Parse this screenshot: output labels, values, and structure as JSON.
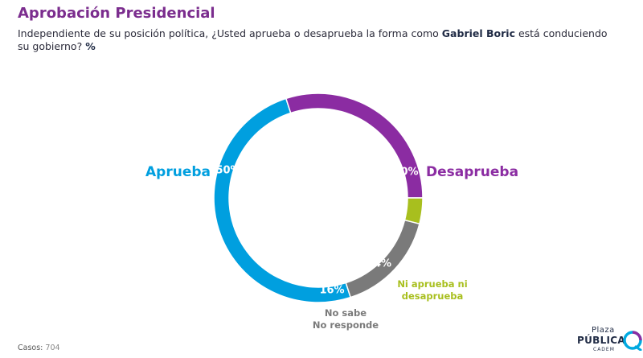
{
  "title": "Aprobación Presidencial",
  "subtitle": {
    "part1": "Independiente de su posición política, ¿Usted aprueba o desaprueba la forma como ",
    "bold": "Gabriel Boric",
    "part2": " está conduciendo su gobierno? ",
    "unit": "%"
  },
  "chart_data": {
    "type": "pie",
    "variant": "donut",
    "slices": [
      {
        "label": "Aprueba",
        "value": 50,
        "value_label": "50%",
        "color": "#009fdf"
      },
      {
        "label": "Desaprueba",
        "value": 30,
        "value_label": "30%",
        "color": "#8b2ca2"
      },
      {
        "label": "Ni aprueba ni desaprueba",
        "label_lines": [
          "Ni aprueba ni",
          "desaprueba"
        ],
        "value": 4,
        "value_label": "4%",
        "color": "#a8bf1e"
      },
      {
        "label": "No sabe No responde",
        "label_lines": [
          "No sabe",
          "No responde"
        ],
        "value": 16,
        "value_label": "16%",
        "color": "#7a7a7a"
      }
    ]
  },
  "footer": {
    "cases_label": "Casos:",
    "cases_value": "704"
  },
  "logo": {
    "line1": "Plaza",
    "line2": "PÚBLICA",
    "line3": "CADEM"
  }
}
